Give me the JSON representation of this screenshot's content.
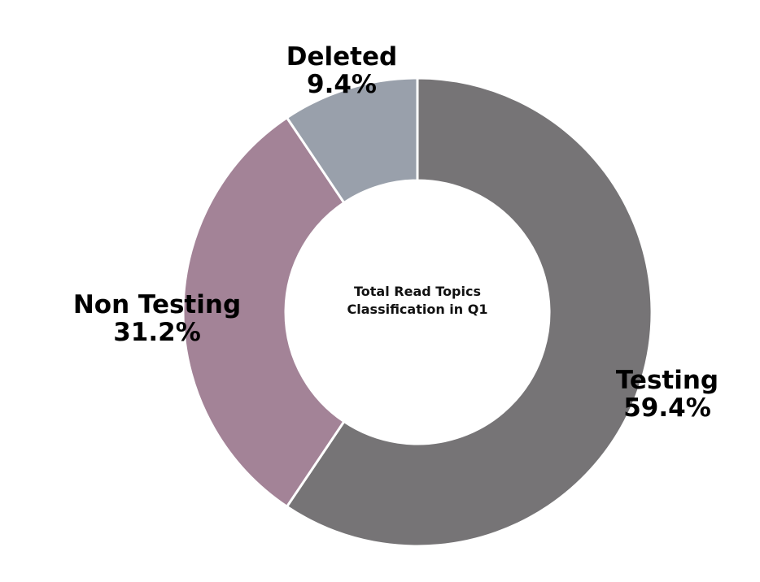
{
  "chart_data": {
    "type": "pie",
    "title": "Total Read Topics Classification in Q1",
    "center_title_lines": [
      "Total Read Topics",
      "Classification in Q1"
    ],
    "categories": [
      "Testing",
      "Non Testing",
      "Deleted"
    ],
    "values": [
      59.4,
      31.2,
      9.4
    ],
    "value_labels": [
      "59.4%",
      "31.2%",
      "9.4%"
    ],
    "colors": [
      "#767476",
      "#a38397",
      "#99a0ab"
    ],
    "donut": true,
    "legend": "none"
  }
}
